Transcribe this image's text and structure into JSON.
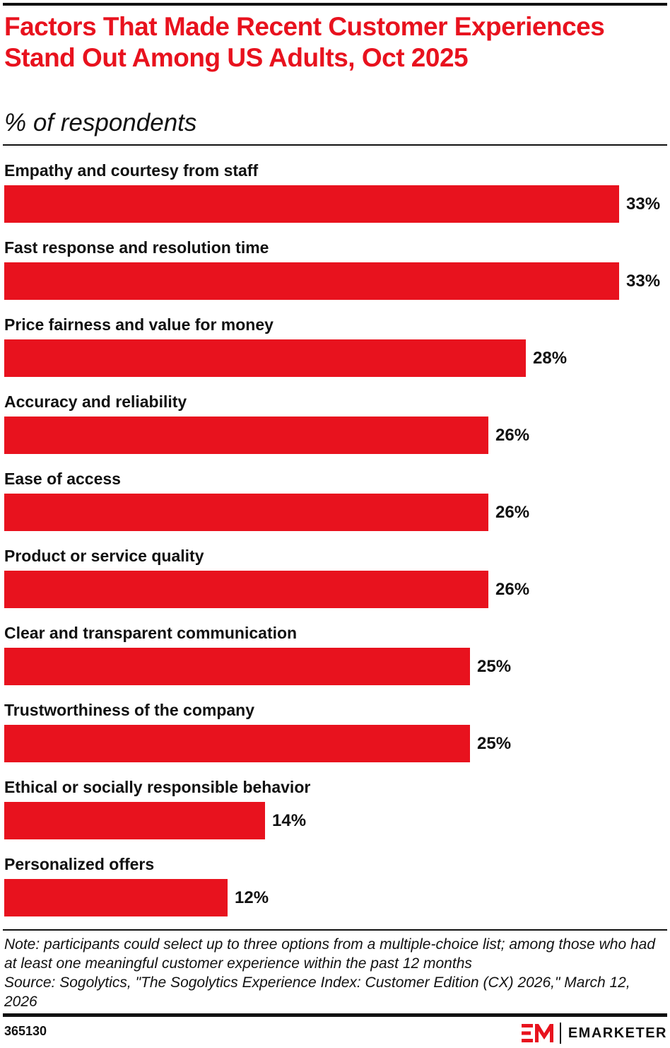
{
  "header": {
    "title": "Factors That Made Recent Customer Experiences Stand Out Among US Adults, Oct 2025",
    "subtitle": "% of respondents"
  },
  "chart_data": {
    "type": "bar",
    "orientation": "horizontal",
    "title": "Factors That Made Recent Customer Experiences Stand Out Among US Adults, Oct 2025",
    "subtitle": "% of respondents",
    "categories": [
      "Empathy and courtesy from staff",
      "Fast response and resolution time",
      "Price fairness and value for money",
      "Accuracy and reliability",
      "Ease of access",
      "Product or service quality",
      "Clear and transparent communication",
      "Trustworthiness of the company",
      "Ethical or socially responsible behavior",
      "Personalized offers"
    ],
    "values": [
      33,
      33,
      28,
      26,
      26,
      26,
      25,
      25,
      14,
      12
    ],
    "value_labels": [
      "33%",
      "33%",
      "28%",
      "26%",
      "26%",
      "26%",
      "25%",
      "25%",
      "14%",
      "12%"
    ],
    "xlabel": "",
    "ylabel": "",
    "grid": false,
    "legend": "none",
    "bar_color": "#e8121e"
  },
  "footer": {
    "note": "Note: participants could select up to three options from a multiple-choice list; among those who had at least one meaningful customer experience within the past 12 months",
    "source": "Source: Sogolytics, \"The Sogolytics Experience Index: Customer Edition (CX) 2026,\" March 12, 2026",
    "chart_id": "365130",
    "brand": "EMARKETER"
  },
  "colors": {
    "accent": "#e8121e",
    "text": "#111111",
    "background": "#ffffff"
  },
  "icons": {
    "brand_logo": "emarketer-logo-icon"
  }
}
